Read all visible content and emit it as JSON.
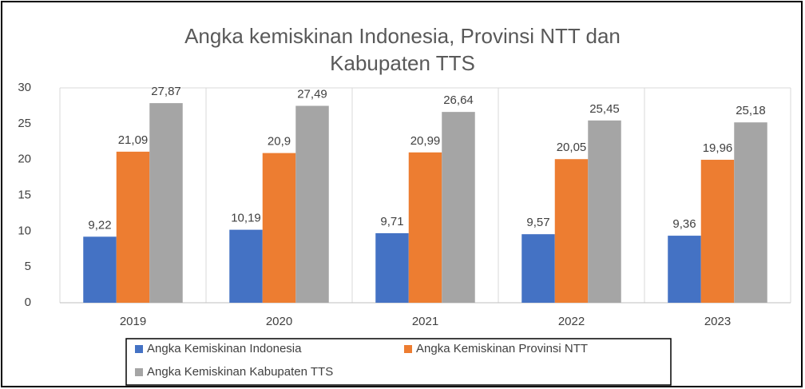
{
  "chart_data": {
    "type": "bar",
    "title": "Angka kemiskinan Indonesia, Provinsi NTT dan Kabupaten TTS",
    "categories": [
      "2019",
      "2020",
      "2021",
      "2022",
      "2023"
    ],
    "series": [
      {
        "name": "Angka Kemiskinan Indonesia",
        "color": "#4472c4",
        "values": [
          9.22,
          10.19,
          9.71,
          9.57,
          9.36
        ],
        "value_labels": [
          "9,22",
          "10,19",
          "9,71",
          "9,57",
          "9,36"
        ]
      },
      {
        "name": "Angka Kemiskinan Provinsi NTT",
        "color": "#ed7d31",
        "values": [
          21.09,
          20.9,
          20.99,
          20.05,
          19.96
        ],
        "value_labels": [
          "21,09",
          "20,9",
          "20,99",
          "20,05",
          "19,96"
        ]
      },
      {
        "name": "Angka Kemiskinan Kabupaten TTS",
        "color": "#a5a5a5",
        "values": [
          27.87,
          27.49,
          26.64,
          25.45,
          25.18
        ],
        "value_labels": [
          "27,87",
          "27,49",
          "26,64",
          "25,45",
          "25,18"
        ]
      }
    ],
    "ylim": [
      0,
      30
    ],
    "yticks": [
      0,
      5,
      10,
      15,
      20,
      25,
      30
    ],
    "grid": false,
    "legend": "bottom"
  }
}
